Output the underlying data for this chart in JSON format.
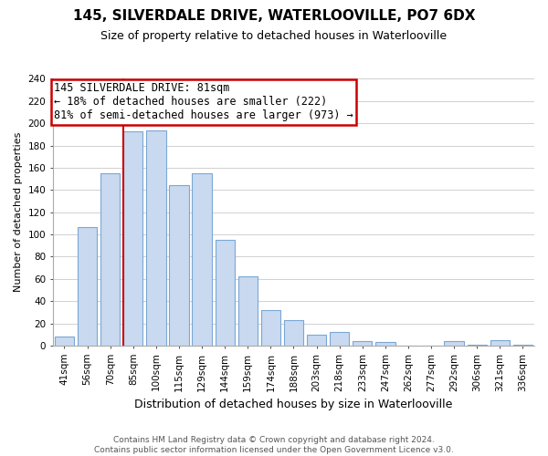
{
  "title": "145, SILVERDALE DRIVE, WATERLOOVILLE, PO7 6DX",
  "subtitle": "Size of property relative to detached houses in Waterlooville",
  "xlabel": "Distribution of detached houses by size in Waterlooville",
  "ylabel": "Number of detached properties",
  "bar_labels": [
    "41sqm",
    "56sqm",
    "70sqm",
    "85sqm",
    "100sqm",
    "115sqm",
    "129sqm",
    "144sqm",
    "159sqm",
    "174sqm",
    "188sqm",
    "203sqm",
    "218sqm",
    "233sqm",
    "247sqm",
    "262sqm",
    "277sqm",
    "292sqm",
    "306sqm",
    "321sqm",
    "336sqm"
  ],
  "bar_heights": [
    8,
    107,
    155,
    193,
    194,
    144,
    155,
    95,
    62,
    32,
    23,
    10,
    12,
    4,
    3,
    0,
    0,
    4,
    1,
    5,
    1
  ],
  "bar_color": "#c9d9f0",
  "bar_edge_color": "#7aa7d4",
  "vline_color": "#cc0000",
  "vline_bar_index": 3,
  "annotation_title": "145 SILVERDALE DRIVE: 81sqm",
  "annotation_line1": "← 18% of detached houses are smaller (222)",
  "annotation_line2": "81% of semi-detached houses are larger (973) →",
  "annotation_box_color": "#ffffff",
  "annotation_box_edge": "#cc0000",
  "ylim": [
    0,
    240
  ],
  "yticks": [
    0,
    20,
    40,
    60,
    80,
    100,
    120,
    140,
    160,
    180,
    200,
    220,
    240
  ],
  "footer_line1": "Contains HM Land Registry data © Crown copyright and database right 2024.",
  "footer_line2": "Contains public sector information licensed under the Open Government Licence v3.0.",
  "background_color": "#ffffff",
  "grid_color": "#d0d0d0",
  "title_fontsize": 11,
  "subtitle_fontsize": 9,
  "ylabel_fontsize": 8,
  "xlabel_fontsize": 9,
  "tick_fontsize": 7.5,
  "annotation_fontsize": 8.5,
  "footer_fontsize": 6.5
}
